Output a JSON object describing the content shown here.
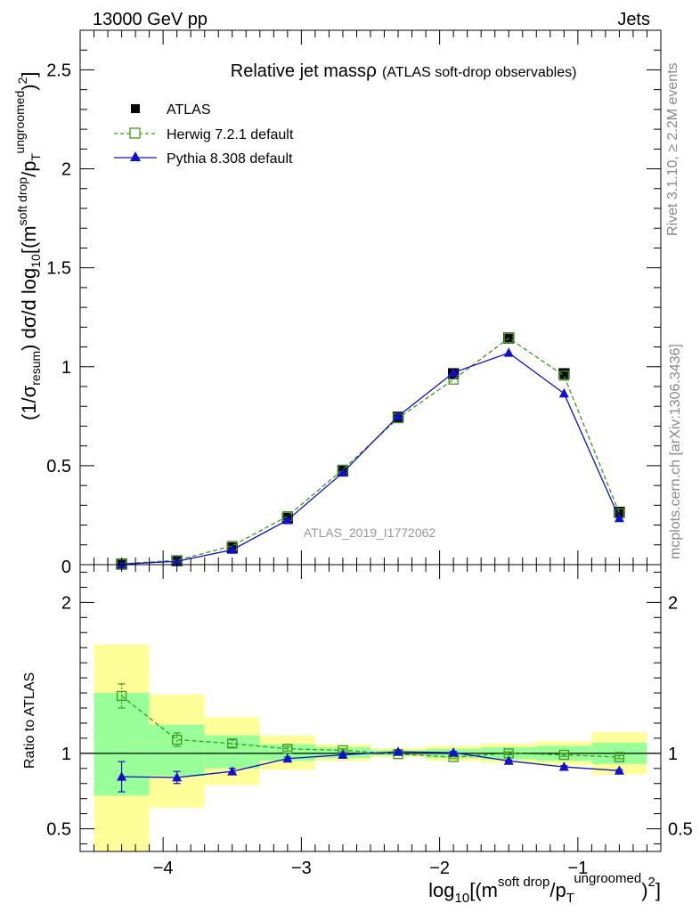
{
  "header": {
    "left": "13000 GeV pp",
    "right": "Jets"
  },
  "side_labels": {
    "rivet": "Rivet 3.1.10, ≥ 2.2M events",
    "mcplots": "mcplots.cern.ch [arXiv:1306.3436]"
  },
  "watermark": "ATLAS_2019_I1772062",
  "colors": {
    "data": "#000000",
    "herwig": "#3a9a1a",
    "pythia": "#1010cc",
    "band_yellow": "#ffff99",
    "band_green": "#99ff99"
  },
  "chart_data": [
    {
      "type": "scatter",
      "title_main": "Relative jet mass",
      "title_rho": "ρ",
      "title_sub": "(ATLAS soft-drop observables)",
      "ylabel": "(1/σresum) dσ/d log10[(msoft drop/pTungroomed)2]",
      "xlim": [
        -4.6,
        -0.4
      ],
      "ylim": [
        0,
        2.7
      ],
      "yticks": [
        0.5,
        1,
        1.5,
        2,
        2.5
      ],
      "ytick_labels": [
        "0.5",
        "1",
        "1.5",
        "2",
        "2.5"
      ],
      "y_bottom_label": "0",
      "legend_position": "top-left",
      "x": [
        -4.3,
        -3.9,
        -3.5,
        -3.1,
        -2.7,
        -2.3,
        -1.9,
        -1.5,
        -1.1,
        -0.7
      ],
      "series": [
        {
          "name": "ATLAS",
          "style": "data",
          "values": [
            0.003,
            0.02,
            0.085,
            0.235,
            0.475,
            0.745,
            0.965,
            1.145,
            0.965,
            0.265
          ]
        },
        {
          "name": "Herwig 7.2.1 default",
          "style": "herwig",
          "values": [
            0.004,
            0.022,
            0.095,
            0.245,
            0.48,
            0.74,
            0.935,
            1.145,
            0.955,
            0.26
          ]
        },
        {
          "name": "Pythia 8.308 default",
          "style": "pythia",
          "values": [
            0.0025,
            0.017,
            0.075,
            0.225,
            0.465,
            0.75,
            0.97,
            1.07,
            0.865,
            0.235
          ]
        }
      ]
    },
    {
      "type": "scatter",
      "ylabel": "Ratio to ATLAS",
      "xlabel": "log10[(msoft drop/pTungroomed)2]",
      "xlim": [
        -4.6,
        -0.4
      ],
      "ylim": [
        0.35,
        2.25
      ],
      "xticks": [
        -4,
        -3,
        -2,
        -1
      ],
      "xtick_labels": [
        "−4",
        "−3",
        "−2",
        "−1"
      ],
      "yticks": [
        0.5,
        1,
        2
      ],
      "ytick_labels": [
        "0.5",
        "1",
        "2"
      ],
      "bin_edges": [
        -4.5,
        -4.1,
        -3.7,
        -3.3,
        -2.9,
        -2.5,
        -2.1,
        -1.7,
        -1.3,
        -0.9,
        -0.5
      ],
      "band_yellow": [
        [
          0.35,
          1.72
        ],
        [
          0.64,
          1.39
        ],
        [
          0.79,
          1.24
        ],
        [
          0.89,
          1.12
        ],
        [
          0.95,
          1.06
        ],
        [
          0.975,
          1.035
        ],
        [
          0.95,
          1.05
        ],
        [
          0.935,
          1.065
        ],
        [
          0.92,
          1.08
        ],
        [
          0.86,
          1.14
        ]
      ],
      "band_green": [
        [
          0.72,
          1.4
        ],
        [
          0.85,
          1.19
        ],
        [
          0.9,
          1.12
        ],
        [
          0.95,
          1.06
        ],
        [
          0.97,
          1.04
        ],
        [
          0.985,
          1.02
        ],
        [
          0.97,
          1.03
        ],
        [
          0.96,
          1.04
        ],
        [
          0.95,
          1.05
        ],
        [
          0.93,
          1.07
        ]
      ],
      "x": [
        -4.3,
        -3.9,
        -3.5,
        -3.1,
        -2.7,
        -2.3,
        -1.9,
        -1.5,
        -1.1,
        -0.7
      ],
      "series": [
        {
          "name": "Herwig 7.2.1 default",
          "style": "herwig",
          "values": [
            1.38,
            1.09,
            1.065,
            1.03,
            1.02,
            0.995,
            0.975,
            1.0,
            0.99,
            0.975
          ],
          "err": [
            0.08,
            0.045,
            0.025,
            0.015,
            0.01,
            0.008,
            0.01,
            0.01,
            0.01,
            0.01
          ]
        },
        {
          "name": "Pythia 8.308 default",
          "style": "pythia",
          "values": [
            0.845,
            0.84,
            0.88,
            0.965,
            0.99,
            1.01,
            1.005,
            0.95,
            0.91,
            0.885
          ],
          "err": [
            0.1,
            0.04,
            0.02,
            0.01,
            0.008,
            0.008,
            0.008,
            0.006,
            0.008,
            0.006
          ]
        }
      ]
    }
  ]
}
